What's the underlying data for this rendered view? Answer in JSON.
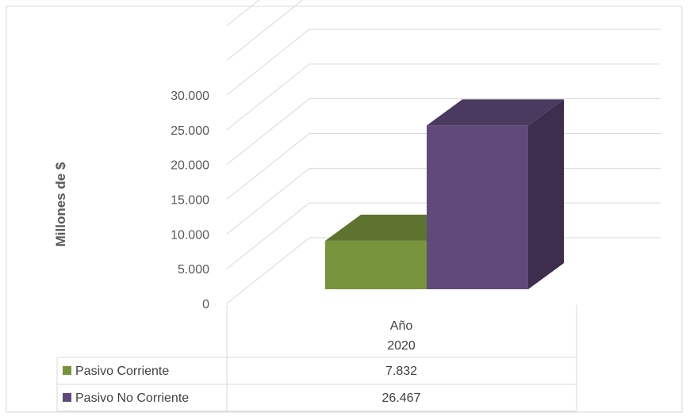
{
  "chart_data": {
    "type": "bar",
    "ylabel": "Millones de $",
    "ylim": [
      0,
      30000
    ],
    "yticks": [
      0,
      5000,
      10000,
      15000,
      20000,
      25000,
      30000
    ],
    "ytick_labels": [
      "0",
      "5.000",
      "10.000",
      "15.000",
      "20.000",
      "25.000",
      "30.000"
    ],
    "x_header": [
      "Año",
      "2020"
    ],
    "categories": [
      "2020"
    ],
    "series": [
      {
        "name": "Pasivo Corriente",
        "values": [
          7832
        ],
        "label": "7.832",
        "color": "#77933C"
      },
      {
        "name": "Pasivo No Corriente",
        "values": [
          26467
        ],
        "label": "26.467",
        "color": "#604A7B"
      }
    ],
    "legend": "data-table",
    "grid": true
  }
}
